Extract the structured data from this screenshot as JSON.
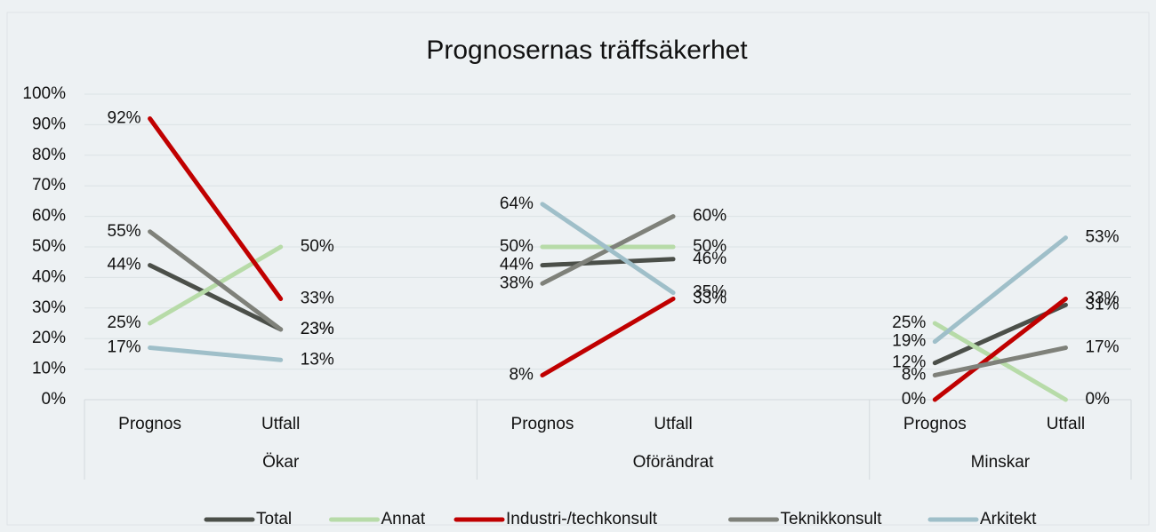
{
  "chart_data": {
    "type": "line",
    "title": "Prognosernas träffsäkerhet",
    "categories": [
      "Prognos",
      "Utfall",
      null,
      "Prognos",
      "Utfall",
      null,
      "Prognos",
      "Utfall"
    ],
    "groups": [
      {
        "name": "Ökar",
        "size": 3
      },
      {
        "name": "Oförändrat",
        "size": 3
      },
      {
        "name": "Minskar",
        "size": 2
      }
    ],
    "series": [
      {
        "name": "Total",
        "color": "#4b4f49",
        "values": [
          44,
          23,
          null,
          44,
          46,
          null,
          12,
          31
        ],
        "value_labels": [
          "44%",
          "23%",
          null,
          "44%",
          "46%",
          null,
          "12%",
          "31%"
        ]
      },
      {
        "name": "Annat",
        "color": "#b7dba8",
        "values": [
          25,
          50,
          null,
          50,
          50,
          null,
          25,
          0
        ],
        "value_labels": [
          "25%",
          "50%",
          null,
          "50%",
          "50%",
          null,
          "25%",
          "0%"
        ]
      },
      {
        "name": "Industri-/techkonsult",
        "color": "#c00000",
        "values": [
          92,
          33,
          null,
          8,
          33,
          null,
          0,
          33
        ],
        "value_labels": [
          "92%",
          "33%",
          null,
          "8%",
          "33%",
          null,
          "0%",
          "33%"
        ]
      },
      {
        "name": "Teknikkonsult",
        "color": "#7f817a",
        "values": [
          55,
          23,
          null,
          38,
          60,
          null,
          8,
          17
        ],
        "value_labels": [
          "55%",
          "23%",
          null,
          "38%",
          "60%",
          null,
          "8%",
          "17%"
        ]
      },
      {
        "name": "Arkitekt",
        "color": "#9fbfc9",
        "values": [
          17,
          13,
          null,
          64,
          35,
          null,
          19,
          53
        ],
        "value_labels": [
          "17%",
          "13%",
          null,
          "64%",
          "35%",
          null,
          "19%",
          "53%"
        ]
      }
    ],
    "ylim": [
      0,
      100
    ],
    "yticks": [
      {
        "value": 0,
        "label": "0%"
      },
      {
        "value": 10,
        "label": "10%"
      },
      {
        "value": 20,
        "label": "20%"
      },
      {
        "value": 30,
        "label": "30%"
      },
      {
        "value": 40,
        "label": "40%"
      },
      {
        "value": 50,
        "label": "50%"
      },
      {
        "value": 60,
        "label": "60%"
      },
      {
        "value": 70,
        "label": "70%"
      },
      {
        "value": 80,
        "label": "80%"
      },
      {
        "value": 90,
        "label": "90%"
      },
      {
        "value": 100,
        "label": "100%"
      }
    ],
    "grid": true,
    "legend": "bottom"
  }
}
